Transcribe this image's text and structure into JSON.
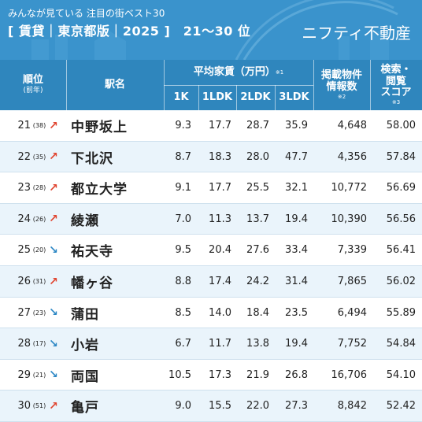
{
  "header": {
    "subtitle": "みんなが見ている 注目の街ベスト30",
    "title": "[ 賃貸｜東京都版｜2025 ]　21〜30 位",
    "brand": "ニフティ不動産"
  },
  "columns": {
    "rank_label": "順位",
    "rank_sub": "(前年)",
    "station_label": "駅名",
    "rent_label": "平均家賃（万円）",
    "rent_note": "※1",
    "rent_1k": "1K",
    "rent_1ldk": "1LDK",
    "rent_2ldk": "2LDK",
    "rent_3ldk": "3LDK",
    "count_label_1": "掲載物件",
    "count_label_2": "情報数",
    "count_note": "※2",
    "score_label_1": "検索・",
    "score_label_2": "閲覧",
    "score_label_3": "スコア",
    "score_note": "※3"
  },
  "colors": {
    "header_bg": "#3a93cc",
    "table_header_bg": "#2f86bd",
    "alt_row_bg": "#eaf4fb",
    "up_arrow": "#e0442f",
    "down_arrow": "#2a86c4"
  },
  "rows": [
    {
      "rank": "21",
      "prev": "(38)",
      "trend": "up",
      "arrow": "↗",
      "station": "中野坂上",
      "r1k": "9.3",
      "r1ldk": "17.7",
      "r2ldk": "28.7",
      "r3ldk": "35.9",
      "count": "4,648",
      "score": "58.00"
    },
    {
      "rank": "22",
      "prev": "(35)",
      "trend": "up",
      "arrow": "↗",
      "station": "下北沢",
      "r1k": "8.7",
      "r1ldk": "18.3",
      "r2ldk": "28.0",
      "r3ldk": "47.7",
      "count": "4,356",
      "score": "57.84"
    },
    {
      "rank": "23",
      "prev": "(28)",
      "trend": "up",
      "arrow": "↗",
      "station": "都立大学",
      "r1k": "9.1",
      "r1ldk": "17.7",
      "r2ldk": "25.5",
      "r3ldk": "32.1",
      "count": "10,772",
      "score": "56.69"
    },
    {
      "rank": "24",
      "prev": "(26)",
      "trend": "up",
      "arrow": "↗",
      "station": "綾瀬",
      "r1k": "7.0",
      "r1ldk": "11.3",
      "r2ldk": "13.7",
      "r3ldk": "19.4",
      "count": "10,390",
      "score": "56.56"
    },
    {
      "rank": "25",
      "prev": "(20)",
      "trend": "down",
      "arrow": "↘",
      "station": "祐天寺",
      "r1k": "9.5",
      "r1ldk": "20.4",
      "r2ldk": "27.6",
      "r3ldk": "33.4",
      "count": "7,339",
      "score": "56.41"
    },
    {
      "rank": "26",
      "prev": "(31)",
      "trend": "up",
      "arrow": "↗",
      "station": "幡ヶ谷",
      "r1k": "8.8",
      "r1ldk": "17.4",
      "r2ldk": "24.2",
      "r3ldk": "31.4",
      "count": "7,865",
      "score": "56.02"
    },
    {
      "rank": "27",
      "prev": "(23)",
      "trend": "down",
      "arrow": "↘",
      "station": "蒲田",
      "r1k": "8.5",
      "r1ldk": "14.0",
      "r2ldk": "18.4",
      "r3ldk": "23.5",
      "count": "6,494",
      "score": "55.89"
    },
    {
      "rank": "28",
      "prev": "(17)",
      "trend": "down",
      "arrow": "↘",
      "station": "小岩",
      "r1k": "6.7",
      "r1ldk": "11.7",
      "r2ldk": "13.8",
      "r3ldk": "19.4",
      "count": "7,752",
      "score": "54.84"
    },
    {
      "rank": "29",
      "prev": "(21)",
      "trend": "down",
      "arrow": "↘",
      "station": "両国",
      "r1k": "10.5",
      "r1ldk": "17.3",
      "r2ldk": "21.9",
      "r3ldk": "26.8",
      "count": "16,706",
      "score": "54.10"
    },
    {
      "rank": "30",
      "prev": "(51)",
      "trend": "up",
      "arrow": "↗",
      "station": "亀戸",
      "r1k": "9.0",
      "r1ldk": "15.5",
      "r2ldk": "22.0",
      "r3ldk": "27.3",
      "count": "8,842",
      "score": "52.42"
    }
  ]
}
